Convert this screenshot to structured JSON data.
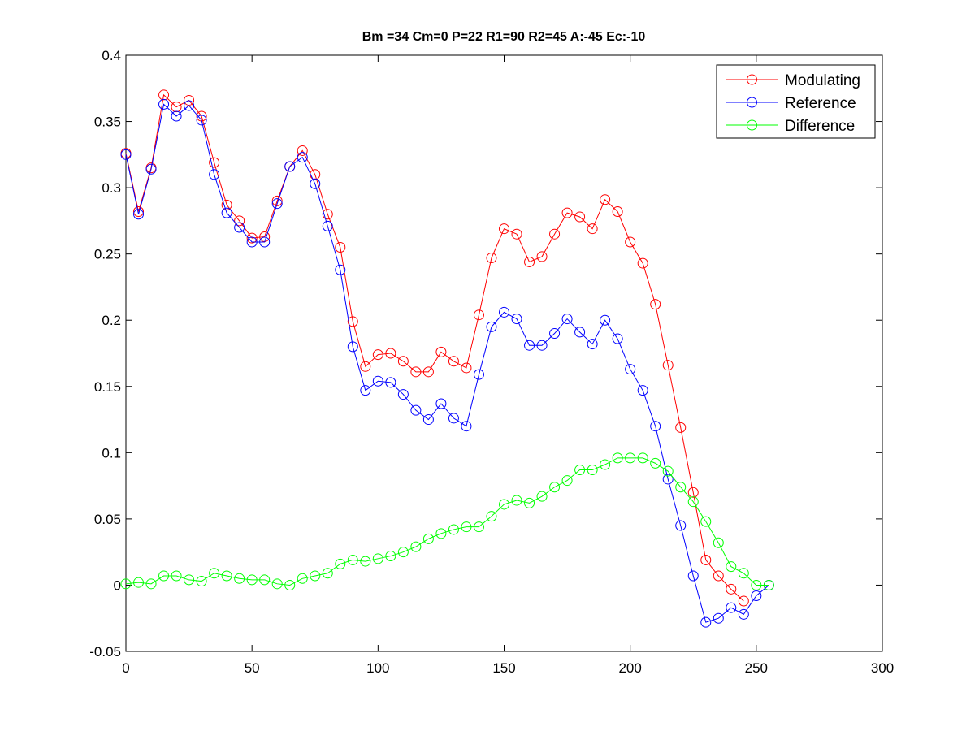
{
  "chart_data": {
    "type": "line",
    "title": "Bm =34  Cm=0  P=22  R1=90  R2=45  A:-45  Ec:-10",
    "xlabel": "",
    "ylabel": "",
    "xlim": [
      0,
      300
    ],
    "ylim": [
      -0.05,
      0.4
    ],
    "x_ticks": [
      0,
      50,
      100,
      150,
      200,
      250,
      300
    ],
    "y_ticks": [
      -0.05,
      0,
      0.05,
      0.1,
      0.15,
      0.2,
      0.25,
      0.3,
      0.35,
      0.4
    ],
    "x_tick_labels": [
      "0",
      "50",
      "100",
      "150",
      "200",
      "250",
      "300"
    ],
    "y_tick_labels": [
      "-0.05",
      "0",
      "0.05",
      "0.1",
      "0.15",
      "0.2",
      "0.25",
      "0.3",
      "0.35",
      "0.4"
    ],
    "grid": false,
    "legend_position": "top-right",
    "marker": "circle",
    "x": [
      0,
      5,
      10,
      15,
      20,
      25,
      30,
      35,
      40,
      45,
      50,
      55,
      60,
      65,
      70,
      75,
      80,
      85,
      90,
      95,
      100,
      105,
      110,
      115,
      120,
      125,
      130,
      135,
      140,
      145,
      150,
      155,
      160,
      165,
      170,
      175,
      180,
      185,
      190,
      195,
      200,
      205,
      210,
      215,
      220,
      225,
      230,
      235,
      240,
      245,
      250,
      255
    ],
    "series": [
      {
        "name": "Modulating",
        "color": "#ff0000",
        "x": [
          0,
          5,
          10,
          15,
          20,
          25,
          30,
          35,
          40,
          45,
          50,
          55,
          60,
          65,
          70,
          75,
          80,
          85,
          90,
          95,
          100,
          105,
          110,
          115,
          120,
          125,
          130,
          135,
          140,
          145,
          150,
          155,
          160,
          165,
          170,
          175,
          180,
          185,
          190,
          195,
          200,
          205,
          210,
          215,
          220,
          225,
          230,
          235,
          240,
          245
        ],
        "values": [
          0.326,
          0.282,
          0.315,
          0.37,
          0.361,
          0.366,
          0.354,
          0.319,
          0.287,
          0.275,
          0.262,
          0.263,
          0.29,
          0.316,
          0.328,
          0.31,
          0.28,
          0.255,
          0.199,
          0.165,
          0.174,
          0.175,
          0.169,
          0.161,
          0.161,
          0.176,
          0.169,
          0.164,
          0.204,
          0.247,
          0.269,
          0.265,
          0.244,
          0.248,
          0.265,
          0.281,
          0.278,
          0.269,
          0.291,
          0.282,
          0.259,
          0.243,
          0.212,
          0.166,
          0.119,
          0.07,
          0.019,
          0.007,
          -0.003,
          -0.012
        ]
      },
      {
        "name": "Reference",
        "color": "#0000ff",
        "x": [
          0,
          5,
          10,
          15,
          20,
          25,
          30,
          35,
          40,
          45,
          50,
          55,
          60,
          65,
          70,
          75,
          80,
          85,
          90,
          95,
          100,
          105,
          110,
          115,
          120,
          125,
          130,
          135,
          140,
          145,
          150,
          155,
          160,
          165,
          170,
          175,
          180,
          185,
          190,
          195,
          200,
          205,
          210,
          215,
          220,
          225,
          230,
          235,
          240,
          245,
          250,
          255
        ],
        "values": [
          0.325,
          0.28,
          0.314,
          0.363,
          0.354,
          0.362,
          0.351,
          0.31,
          0.281,
          0.27,
          0.259,
          0.259,
          0.288,
          0.316,
          0.323,
          0.303,
          0.271,
          0.238,
          0.18,
          0.147,
          0.154,
          0.153,
          0.144,
          0.132,
          0.125,
          0.137,
          0.126,
          0.12,
          0.159,
          0.195,
          0.206,
          0.201,
          0.181,
          0.181,
          0.19,
          0.201,
          0.191,
          0.182,
          0.2,
          0.186,
          0.163,
          0.147,
          0.12,
          0.08,
          0.045,
          0.007,
          -0.028,
          -0.025,
          -0.017,
          -0.022,
          -0.008,
          0.0
        ]
      },
      {
        "name": "Difference",
        "color": "#00ff00",
        "x": [
          0,
          5,
          10,
          15,
          20,
          25,
          30,
          35,
          40,
          45,
          50,
          55,
          60,
          65,
          70,
          75,
          80,
          85,
          90,
          95,
          100,
          105,
          110,
          115,
          120,
          125,
          130,
          135,
          140,
          145,
          150,
          155,
          160,
          165,
          170,
          175,
          180,
          185,
          190,
          195,
          200,
          205,
          210,
          215,
          220,
          225,
          230,
          235,
          240,
          245,
          250,
          255
        ],
        "values": [
          0.001,
          0.002,
          0.001,
          0.007,
          0.007,
          0.004,
          0.003,
          0.009,
          0.007,
          0.005,
          0.004,
          0.004,
          0.001,
          0.0,
          0.005,
          0.007,
          0.009,
          0.016,
          0.019,
          0.018,
          0.02,
          0.022,
          0.025,
          0.029,
          0.035,
          0.039,
          0.042,
          0.044,
          0.044,
          0.052,
          0.061,
          0.064,
          0.062,
          0.067,
          0.074,
          0.079,
          0.087,
          0.087,
          0.091,
          0.096,
          0.096,
          0.096,
          0.092,
          0.086,
          0.074,
          0.063,
          0.048,
          0.032,
          0.014,
          0.009,
          0.0,
          0.0
        ]
      }
    ]
  }
}
